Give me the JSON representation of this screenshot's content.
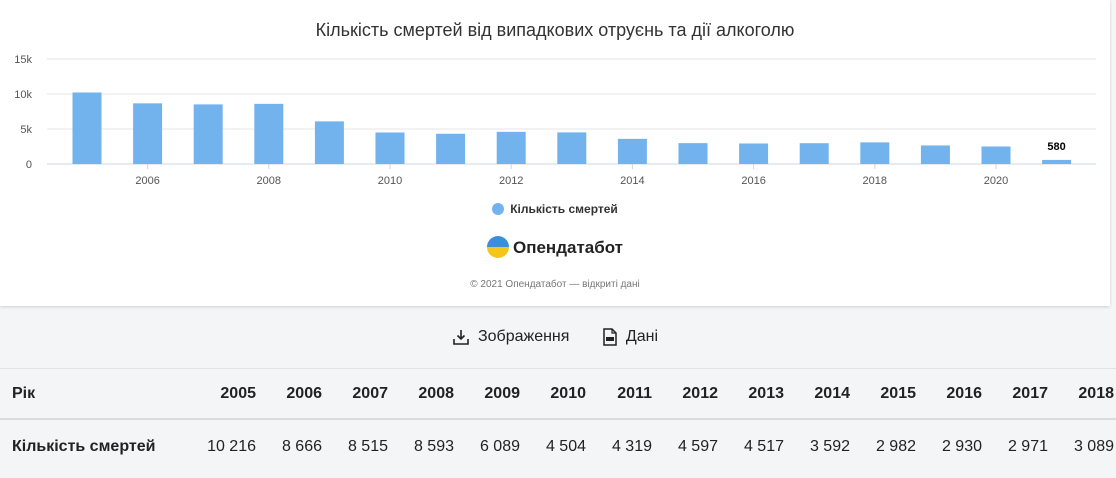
{
  "chart_data": {
    "type": "bar",
    "title": "Кількість смертей від випадкових отруєнь та дії алкоголю",
    "categories": [
      2005,
      2006,
      2007,
      2008,
      2009,
      2010,
      2011,
      2012,
      2013,
      2014,
      2015,
      2016,
      2017,
      2018,
      2019,
      2020,
      2021
    ],
    "series": [
      {
        "name": "Кількість смертей",
        "values": [
          10216,
          8666,
          8515,
          8593,
          6089,
          4504,
          4319,
          4597,
          4517,
          3592,
          2982,
          2930,
          2971,
          3089,
          2650,
          2500,
          580
        ]
      }
    ],
    "ylim": [
      0,
      15000
    ],
    "y_ticks": [
      {
        "value": 0,
        "label": "0"
      },
      {
        "value": 5000,
        "label": "5k"
      },
      {
        "value": 10000,
        "label": "10k"
      },
      {
        "value": 15000,
        "label": "15k"
      }
    ],
    "x_tick_labels": [
      "2006",
      "2008",
      "2010",
      "2012",
      "2014",
      "2016",
      "2018",
      "2020"
    ],
    "data_labels": [
      {
        "category": 2021,
        "label": "580"
      }
    ],
    "bar_color": "#72b3ee",
    "grid": true,
    "legend": "bottom-center"
  },
  "branding": {
    "name": "Опендатабот",
    "copyright": "© 2021 Опендатабот — відкриті дані"
  },
  "actions": {
    "image_label": "Зображення",
    "data_label": "Дані"
  },
  "table": {
    "header_label": "Рік",
    "row_label": "Кількість смертей",
    "years": [
      "2005",
      "2006",
      "2007",
      "2008",
      "2009",
      "2010",
      "2011",
      "2012",
      "2013",
      "2014",
      "2015",
      "2016",
      "2017",
      "2018"
    ],
    "values": [
      "10 216",
      "8 666",
      "8 515",
      "8 593",
      "6 089",
      "4 504",
      "4 319",
      "4 597",
      "4 517",
      "3 592",
      "2 982",
      "2 930",
      "2 971",
      "3 089"
    ]
  }
}
